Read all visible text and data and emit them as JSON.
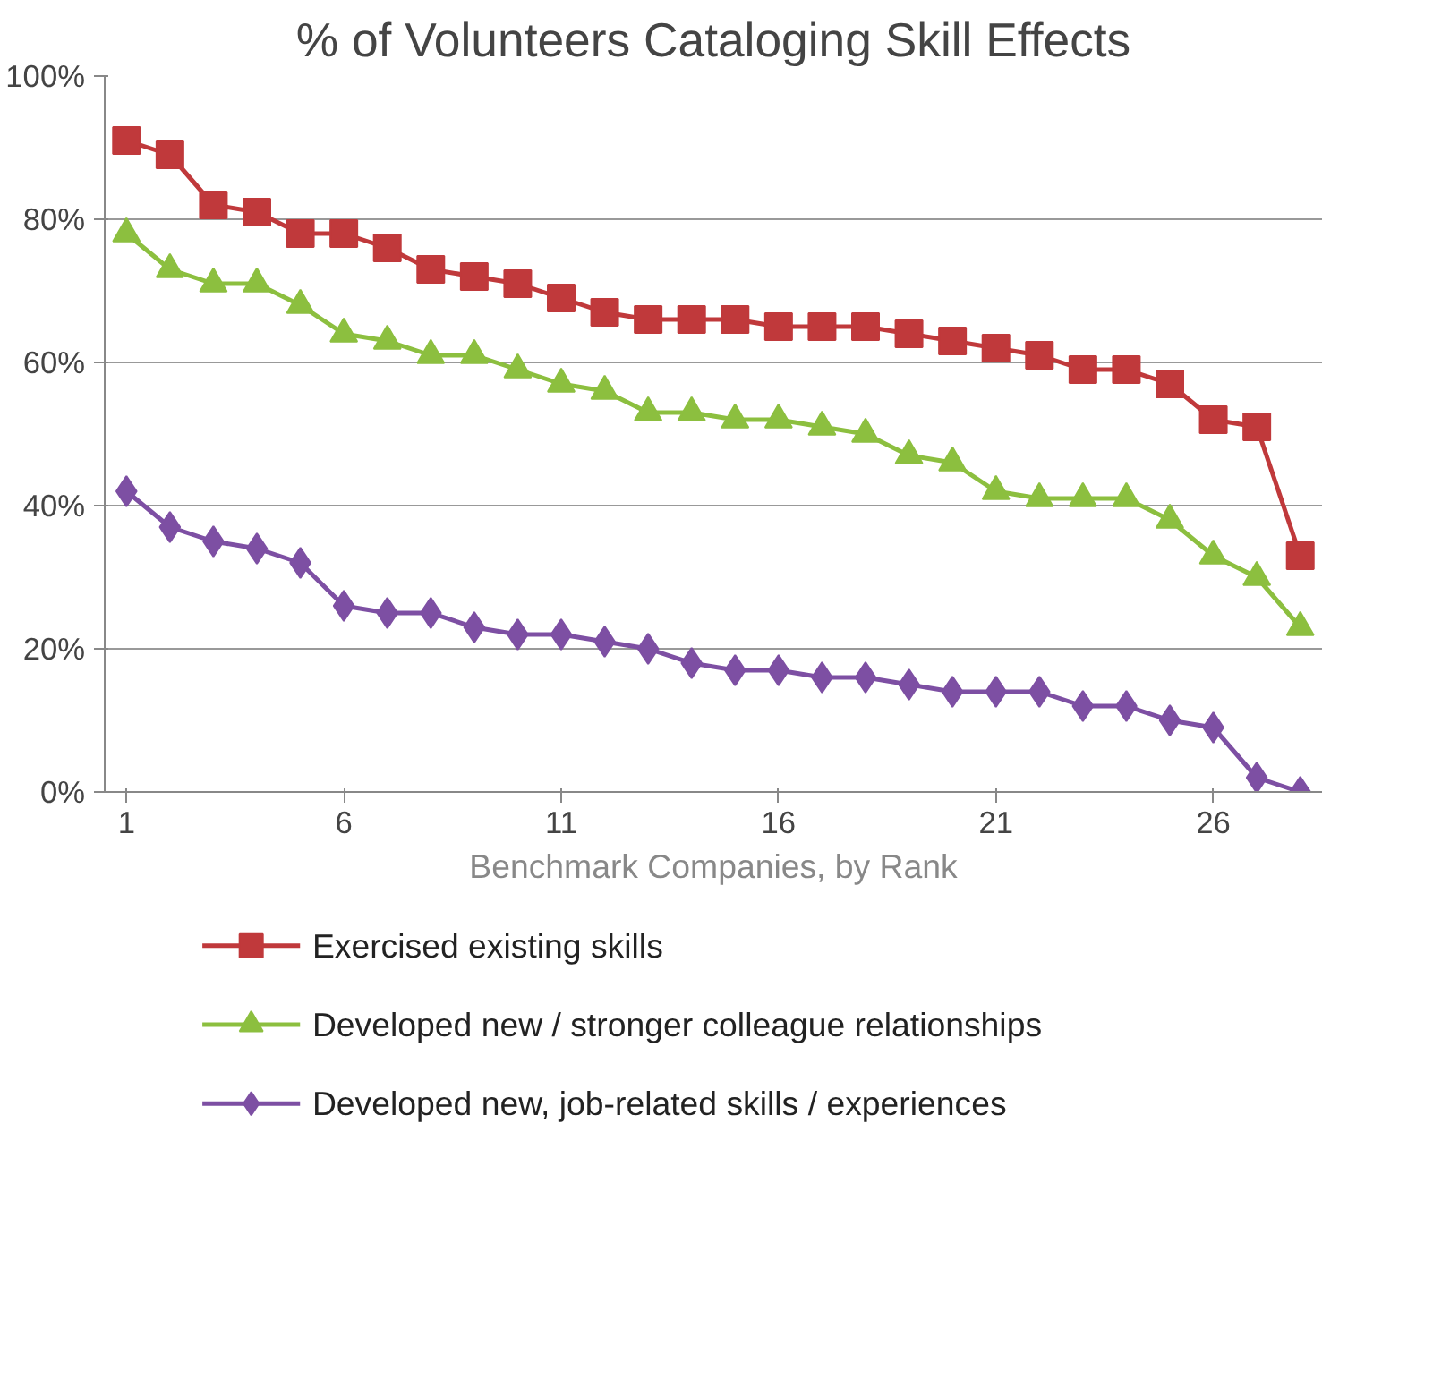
{
  "chart_data": {
    "type": "line",
    "title": "% of Volunteers Cataloging Skill Effects",
    "xlabel": "Benchmark Companies, by Rank",
    "x": [
      1,
      2,
      3,
      4,
      5,
      6,
      7,
      8,
      9,
      10,
      11,
      12,
      13,
      14,
      15,
      16,
      17,
      18,
      19,
      20,
      21,
      22,
      23,
      24,
      25,
      26,
      27,
      28
    ],
    "xlim": [
      0.5,
      28.5
    ],
    "xticks": [
      1,
      6,
      11,
      16,
      21,
      26
    ],
    "ylim": [
      0,
      100
    ],
    "yticks": [
      {
        "value": 0,
        "label": "0%"
      },
      {
        "value": 20,
        "label": "20%"
      },
      {
        "value": 40,
        "label": "40%"
      },
      {
        "value": 60,
        "label": "60%"
      },
      {
        "value": 80,
        "label": "80%"
      },
      {
        "value": 100,
        "label": "100%"
      }
    ],
    "grid": "y",
    "legend": "bottom",
    "line_style": "solid",
    "series": [
      {
        "name": "Exercised existing skills",
        "color": "#c0393b",
        "marker": "square",
        "values": [
          91,
          89,
          82,
          81,
          78,
          78,
          76,
          73,
          72,
          71,
          69,
          67,
          66,
          66,
          66,
          65,
          65,
          65,
          64,
          63,
          62,
          61,
          59,
          59,
          57,
          52,
          51,
          33
        ]
      },
      {
        "name": "Developed new / stronger colleague relationships",
        "color": "#8cbf3f",
        "marker": "triangle",
        "values": [
          78,
          73,
          71,
          71,
          68,
          64,
          63,
          61,
          61,
          59,
          57,
          56,
          53,
          53,
          52,
          52,
          51,
          50,
          47,
          46,
          42,
          41,
          41,
          41,
          38,
          33,
          30,
          23
        ]
      },
      {
        "name": "Developed new, job-related skills / experiences",
        "color": "#7d4fa3",
        "marker": "diamond",
        "values": [
          42,
          37,
          35,
          34,
          32,
          26,
          25,
          25,
          23,
          22,
          22,
          21,
          20,
          18,
          17,
          17,
          16,
          16,
          15,
          14,
          14,
          14,
          12,
          12,
          10,
          9,
          2,
          0
        ]
      }
    ]
  }
}
